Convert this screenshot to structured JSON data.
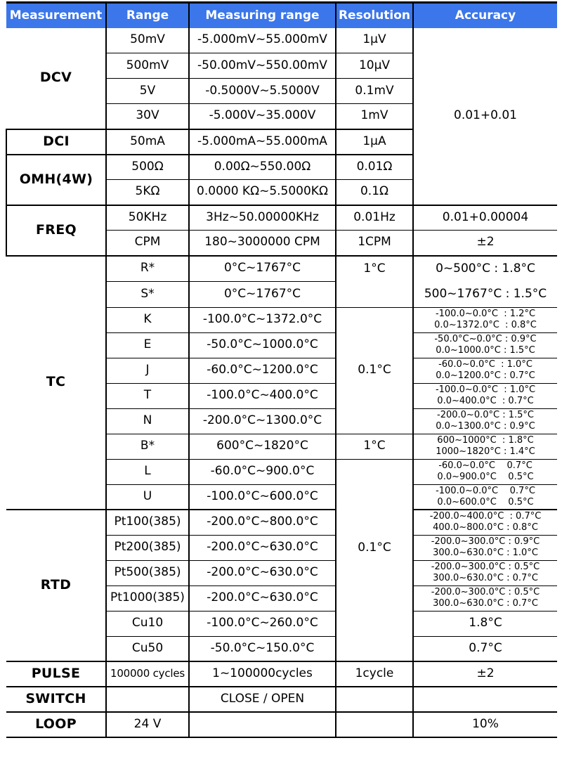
{
  "header": {
    "measurement": "Measurement",
    "range": "Range",
    "measuring_range": "Measuring range",
    "resolution": "Resolution",
    "accuracy": "Accuracy"
  },
  "colors": {
    "header_bg": "#3b76ea",
    "header_text": "#ffffff",
    "border": "#000000"
  },
  "measurements": {
    "dcv": "DCV",
    "dci": "DCI",
    "omh": "OMH(4W)",
    "freq": "FREQ",
    "tc": "TC",
    "rtd": "RTD",
    "pulse": "PULSE",
    "switch": "SWITCH",
    "loop": "LOOP"
  },
  "merged": {
    "acc_dc": "0.01+0.01",
    "res_rs": "1°C",
    "res_k_n": "0.1°C",
    "res_lu_rtd": "0.1°C",
    "acc_rs_line1": "0~500°C  : 1.8°C",
    "acc_rs_line2": "500~1767°C : 1.5°C"
  },
  "rows": {
    "dcv_50mv": {
      "range": "50mV",
      "measuring": "-5.000mV~55.000mV",
      "resolution": "1μV"
    },
    "dcv_500mv": {
      "range": "500mV",
      "measuring": "-50.00mV~550.00mV",
      "resolution": "10μV"
    },
    "dcv_5v": {
      "range": "5V",
      "measuring": "-0.5000V~5.5000V",
      "resolution": "0.1mV"
    },
    "dcv_30v": {
      "range": "30V",
      "measuring": "-5.000V~35.000V",
      "resolution": "1mV"
    },
    "dci_50ma": {
      "range": "50mA",
      "measuring": "-5.000mA~55.000mA",
      "resolution": "1μA"
    },
    "omh_500": {
      "range": "500Ω",
      "measuring": "0.00Ω~550.00Ω",
      "resolution": "0.01Ω"
    },
    "omh_5k": {
      "range": "5KΩ",
      "measuring": "0.0000 KΩ~5.5000KΩ",
      "resolution": "0.1Ω"
    },
    "freq_50k": {
      "range": "50KHz",
      "measuring": "3Hz~50.00000KHz",
      "resolution": "0.01Hz",
      "accuracy": "0.01+0.00004"
    },
    "freq_cpm": {
      "range": "CPM",
      "measuring": "180~3000000 CPM",
      "resolution": "1CPM",
      "accuracy": "±2"
    },
    "tc_r": {
      "range": "R*",
      "measuring": "0°C~1767°C"
    },
    "tc_s": {
      "range": "S*",
      "measuring": "0°C~1767°C"
    },
    "tc_k": {
      "range": "K",
      "measuring": "-100.0°C~1372.0°C",
      "acc1": "-100.0~0.0°C  : 1.2°C",
      "acc2": "0.0~1372.0°C  : 0.8°C"
    },
    "tc_e": {
      "range": "E",
      "measuring": "-50.0°C~1000.0°C",
      "acc1": "-50.0°C~0.0°C : 0.9°C",
      "acc2": "0.0~1000.0°C : 1.5°C"
    },
    "tc_j": {
      "range": "J",
      "measuring": "-60.0°C~1200.0°C",
      "acc1": "-60.0~0.0°C  : 1.0°C",
      "acc2": "0.0~1200.0°C : 0.7°C"
    },
    "tc_t": {
      "range": "T",
      "measuring": "-100.0°C~400.0°C",
      "acc1": "-100.0~0.0°C  : 1.0°C",
      "acc2": "0.0~400.0°C  : 0.7°C"
    },
    "tc_n": {
      "range": "N",
      "measuring": "-200.0°C~1300.0°C",
      "acc1": "-200.0~0.0°C : 1.5°C",
      "acc2": "0.0~1300.0°C : 0.9°C"
    },
    "tc_b": {
      "range": "B*",
      "measuring": "600°C~1820°C",
      "resolution": "1°C",
      "acc1": "600~1000°C  : 1.8°C",
      "acc2": "1000~1820°C : 1.4°C"
    },
    "tc_l": {
      "range": "L",
      "measuring": "-60.0°C~900.0°C",
      "acc1": "-60.0~0.0°C    0.7°C",
      "acc2": "0.0~900.0°C    0.5°C"
    },
    "tc_u": {
      "range": "U",
      "measuring": "-100.0°C~600.0°C",
      "acc1": "-100.0~0.0°C    0.7°C",
      "acc2": "0.0~600.0°C    0.5°C"
    },
    "rtd_pt100": {
      "range": "Pt100(385)",
      "measuring": "-200.0°C~800.0°C",
      "acc1": "-200.0~400.0°C  : 0.7°C",
      "acc2": "400.0~800.0°C : 0.8°C"
    },
    "rtd_pt200": {
      "range": "Pt200(385)",
      "measuring": "-200.0°C~630.0°C",
      "acc1": "-200.0~300.0°C : 0.9°C",
      "acc2": "300.0~630.0°C : 1.0°C"
    },
    "rtd_pt500": {
      "range": "Pt500(385)",
      "measuring": "-200.0°C~630.0°C",
      "acc1": "-200.0~300.0°C : 0.5°C",
      "acc2": "300.0~630.0°C : 0.7°C"
    },
    "rtd_pt1000": {
      "range": "Pt1000(385)",
      "measuring": "-200.0°C~630.0°C",
      "acc1": "-200.0~300.0°C : 0.5°C",
      "acc2": "300.0~630.0°C : 0.7°C"
    },
    "rtd_cu10": {
      "range": "Cu10",
      "measuring": "-100.0°C~260.0°C",
      "accuracy": "1.8°C"
    },
    "rtd_cu50": {
      "range": "Cu50",
      "measuring": "-50.0°C~150.0°C",
      "accuracy": "0.7°C"
    },
    "pulse": {
      "range": "100000 cycles",
      "measuring": "1~100000cycles",
      "resolution": "1cycle",
      "accuracy": "±2"
    },
    "switch": {
      "range": "",
      "measuring": "CLOSE / OPEN",
      "resolution": "",
      "accuracy": ""
    },
    "loop": {
      "range": "24 V",
      "measuring": "",
      "resolution": "",
      "accuracy": "10%"
    }
  }
}
